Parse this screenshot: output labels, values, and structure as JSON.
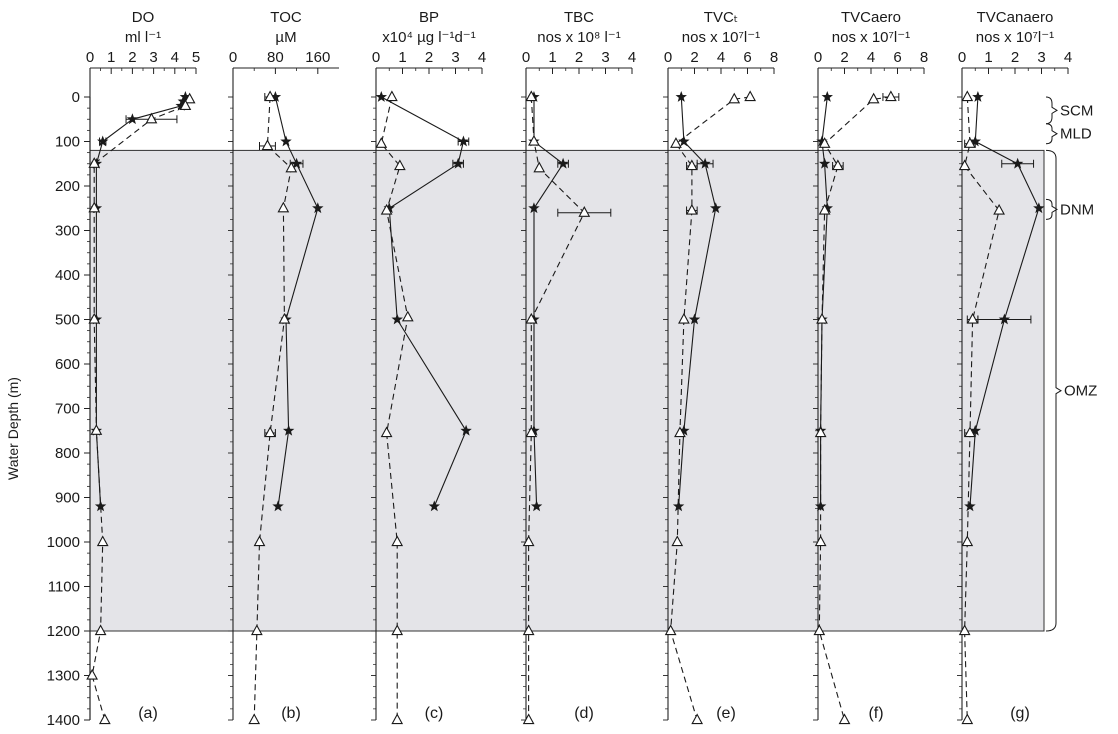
{
  "chart_data": {
    "type": "scatter",
    "ylabel": "Water Depth (m)",
    "y_range": [
      0,
      1400
    ],
    "y_inverted": true,
    "y_ticks": [
      0,
      100,
      200,
      300,
      400,
      500,
      600,
      700,
      800,
      900,
      1000,
      1100,
      1200,
      1300,
      1400
    ],
    "shaded_band": {
      "depth_from": 120,
      "depth_to": 1200,
      "color": "#e4e4e8"
    },
    "zone_annotations": [
      {
        "label": "SCM",
        "depth_from": 0,
        "depth_to": 60
      },
      {
        "label": "MLD",
        "depth_from": 60,
        "depth_to": 105
      },
      {
        "label": "DNM",
        "depth_from": 230,
        "depth_to": 275
      },
      {
        "label": "OMZ",
        "depth_from": 120,
        "depth_to": 1200
      }
    ],
    "series_styles": [
      {
        "marker": "star",
        "line": "solid"
      },
      {
        "marker": "triangle",
        "line": "dashed"
      }
    ],
    "panels": [
      {
        "id": "a",
        "letter": "(a)",
        "title": [
          "DO",
          "ml l⁻¹"
        ],
        "xlim": [
          0,
          5
        ],
        "xticks": [
          0,
          1,
          2,
          3,
          4,
          5
        ],
        "series": [
          {
            "points": [
              [
                4.5,
                0
              ],
              [
                4.4,
                10
              ],
              [
                4.3,
                20
              ],
              [
                2.0,
                50
              ],
              [
                0.6,
                100
              ],
              [
                0.3,
                150
              ],
              [
                0.3,
                250
              ],
              [
                0.3,
                500
              ],
              [
                0.3,
                750
              ],
              [
                0.5,
                920
              ]
            ],
            "errors": {
              "2.0": 0.8,
              "0.6": 0.15
            }
          },
          {
            "points": [
              [
                4.7,
                5
              ],
              [
                4.5,
                20
              ],
              [
                2.9,
                50
              ],
              [
                0.2,
                150
              ],
              [
                0.2,
                250
              ],
              [
                0.2,
                500
              ],
              [
                0.3,
                750
              ],
              [
                0.6,
                1000
              ],
              [
                0.5,
                1200
              ],
              [
                0.1,
                1300
              ],
              [
                0.7,
                1400
              ]
            ],
            "errors": {
              "2.9": 1.2
            }
          }
        ]
      },
      {
        "id": "b",
        "letter": "(b)",
        "title": [
          "TOC",
          "µM"
        ],
        "xlim": [
          0,
          200
        ],
        "xticks": [
          0,
          80,
          160
        ],
        "xtick_labels": [
          "0",
          "80",
          "160"
        ],
        "series": [
          {
            "points": [
              [
                80,
                0
              ],
              [
                100,
                100
              ],
              [
                120,
                150
              ],
              [
                160,
                250
              ],
              [
                100,
                500
              ],
              [
                105,
                750
              ],
              [
                85,
                920
              ]
            ],
            "errors": {
              "120": 12
            }
          },
          {
            "points": [
              [
                70,
                0
              ],
              [
                65,
                110
              ],
              [
                110,
                160
              ],
              [
                95,
                250
              ],
              [
                97,
                500
              ],
              [
                70,
                755
              ],
              [
                50,
                1000
              ],
              [
                45,
                1200
              ],
              [
                40,
                1400
              ]
            ],
            "errors": {
              "70": 10,
              "65": 15
            }
          }
        ]
      },
      {
        "id": "c",
        "letter": "(c)",
        "title": [
          "BP",
          "x10⁴  µg l⁻¹d⁻¹"
        ],
        "xlim": [
          0,
          4
        ],
        "xticks": [
          0,
          1,
          2,
          3,
          4
        ],
        "series": [
          {
            "points": [
              [
                0.2,
                0
              ],
              [
                3.3,
                100
              ],
              [
                3.1,
                150
              ],
              [
                0.5,
                250
              ],
              [
                0.8,
                500
              ],
              [
                3.4,
                750
              ],
              [
                2.2,
                920
              ]
            ],
            "errors": {
              "3.3": 0.2,
              "3.1": 0.2
            }
          },
          {
            "points": [
              [
                0.6,
                0
              ],
              [
                0.2,
                105
              ],
              [
                0.9,
                155
              ],
              [
                0.4,
                255
              ],
              [
                1.2,
                495
              ],
              [
                0.4,
                755
              ],
              [
                0.8,
                1000
              ],
              [
                0.8,
                1200
              ],
              [
                0.8,
                1400
              ]
            ],
            "errors": {}
          }
        ]
      },
      {
        "id": "d",
        "letter": "(d)",
        "title": [
          "TBC",
          "nos x 10⁸ l⁻¹"
        ],
        "xlim": [
          0,
          4
        ],
        "xticks": [
          0,
          1,
          2,
          3,
          4
        ],
        "series": [
          {
            "points": [
              [
                0.3,
                0
              ],
              [
                0.3,
                100
              ],
              [
                1.4,
                150
              ],
              [
                0.3,
                250
              ],
              [
                0.3,
                500
              ],
              [
                0.3,
                750
              ],
              [
                0.4,
                920
              ]
            ],
            "errors": {
              "1.4": 0.2
            }
          },
          {
            "points": [
              [
                0.2,
                0
              ],
              [
                0.3,
                100
              ],
              [
                0.5,
                160
              ],
              [
                2.2,
                260
              ],
              [
                0.2,
                500
              ],
              [
                0.2,
                755
              ],
              [
                0.1,
                1000
              ],
              [
                0.1,
                1200
              ],
              [
                0.1,
                1400
              ]
            ],
            "errors": {
              "2.2": 1.0
            }
          }
        ]
      },
      {
        "id": "e",
        "letter": "(e)",
        "title": [
          "TVCₜ",
          "nos x 10⁷l⁻¹"
        ],
        "xlim": [
          0,
          8
        ],
        "xticks": [
          0,
          2,
          4,
          6,
          8
        ],
        "series": [
          {
            "points": [
              [
                1.0,
                0
              ],
              [
                1.2,
                100
              ],
              [
                2.8,
                150
              ],
              [
                3.6,
                250
              ],
              [
                2.0,
                500
              ],
              [
                1.2,
                750
              ],
              [
                0.8,
                920
              ]
            ],
            "errors": {
              "2.8": 0.6,
              "2.0": 0.8
            }
          },
          {
            "points": [
              [
                6.2,
                0
              ],
              [
                5.0,
                5
              ],
              [
                0.6,
                105
              ],
              [
                1.8,
                155
              ],
              [
                1.8,
                255
              ],
              [
                1.2,
                500
              ],
              [
                0.9,
                755
              ],
              [
                0.7,
                1000
              ],
              [
                0.2,
                1200
              ],
              [
                2.2,
                1400
              ]
            ],
            "errors": {
              "5.0": 0.8,
              "1.8": 0.4
            }
          }
        ]
      },
      {
        "id": "f",
        "letter": "(f)",
        "title": [
          "TVCaero",
          "nos x 10⁷l⁻¹"
        ],
        "xlim": [
          0,
          8
        ],
        "xticks": [
          0,
          2,
          4,
          6,
          8
        ],
        "series": [
          {
            "points": [
              [
                0.7,
                0
              ],
              [
                0.3,
                100
              ],
              [
                0.5,
                150
              ],
              [
                0.7,
                250
              ],
              [
                0.3,
                500
              ],
              [
                0.2,
                750
              ],
              [
                0.2,
                920
              ]
            ],
            "errors": {}
          },
          {
            "points": [
              [
                5.5,
                0
              ],
              [
                4.2,
                5
              ],
              [
                0.5,
                105
              ],
              [
                1.5,
                155
              ],
              [
                0.5,
                255
              ],
              [
                0.3,
                500
              ],
              [
                0.2,
                755
              ],
              [
                0.2,
                1000
              ],
              [
                0.1,
                1200
              ],
              [
                2.0,
                1400
              ]
            ],
            "errors": {
              "5.5": 0.6,
              "1.5": 0.4
            }
          }
        ]
      },
      {
        "id": "g",
        "letter": "(g)",
        "title": [
          "TVCanaero",
          "nos x 10⁷l⁻¹"
        ],
        "xlim": [
          0,
          4
        ],
        "xticks": [
          0,
          1,
          2,
          3,
          4
        ],
        "series": [
          {
            "points": [
              [
                0.6,
                0
              ],
              [
                0.5,
                100
              ],
              [
                2.1,
                150
              ],
              [
                2.9,
                250
              ],
              [
                1.6,
                500
              ],
              [
                0.5,
                750
              ],
              [
                0.3,
                920
              ]
            ],
            "errors": {
              "2.1": 0.6,
              "1.6": 1.0
            }
          },
          {
            "points": [
              [
                0.2,
                0
              ],
              [
                0.3,
                105
              ],
              [
                0.1,
                155
              ],
              [
                1.4,
                255
              ],
              [
                0.4,
                500
              ],
              [
                0.3,
                755
              ],
              [
                0.2,
                1000
              ],
              [
                0.1,
                1200
              ],
              [
                0.2,
                1400
              ]
            ],
            "errors": {
              "0.4": 0.2,
              "0.3": 0.2
            }
          }
        ]
      }
    ]
  }
}
